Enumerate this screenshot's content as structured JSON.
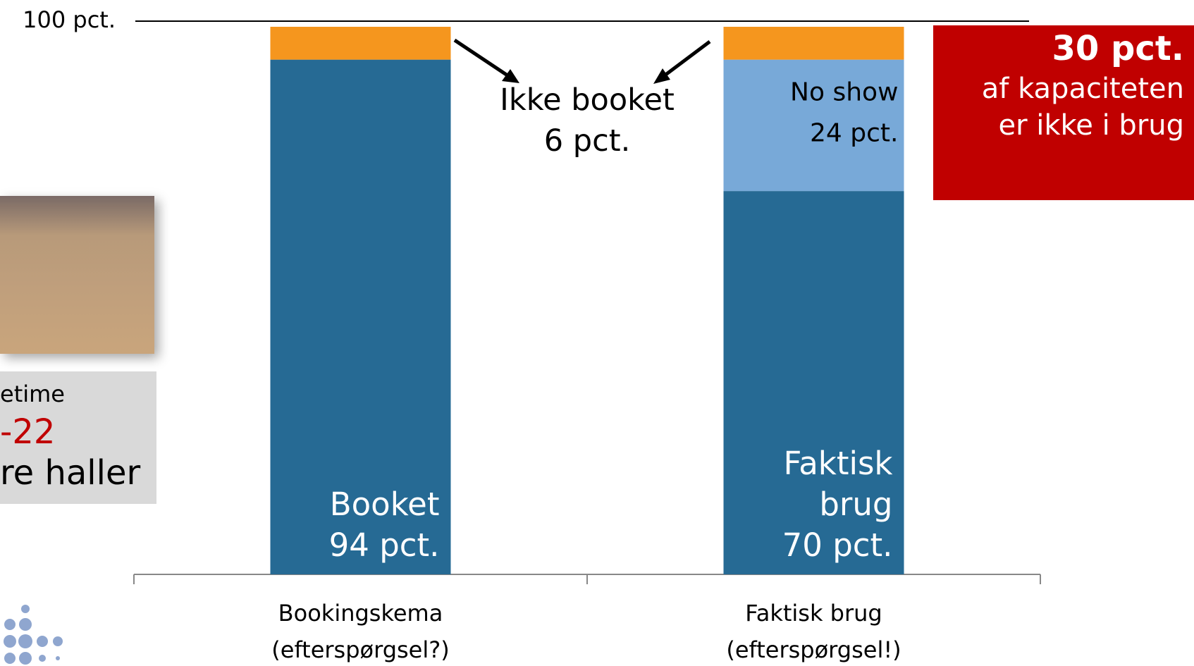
{
  "chart_data": {
    "type": "stacked-bar",
    "categories": [
      "Bookingskema\n(efterspørgsel?)",
      "Faktisk brug\n(efterspørgsel!)"
    ],
    "series": [
      {
        "color": "#266a94",
        "segment_names": [
          "Booket",
          "Faktisk\nbrug"
        ],
        "values": [
          94,
          70
        ],
        "value_labels": [
          "94 pct.",
          "70 pct."
        ]
      },
      {
        "name": "No show",
        "color": "#78a9d8",
        "values": [
          null,
          24
        ],
        "value_labels": [
          null,
          "24 pct."
        ]
      },
      {
        "name": "Ikke booket",
        "color": "#f5961e",
        "values": [
          6,
          6
        ],
        "value_labels": [
          "6 pct.",
          null
        ]
      }
    ],
    "ylim": [
      0,
      100
    ],
    "yticks": [
      {
        "value": 100,
        "label": "100 pct."
      }
    ]
  },
  "callout": {
    "headline": "30 pct.",
    "text": [
      "af kapaciteten",
      "er ikke i brug"
    ]
  },
  "sidebar": {
    "lines": [
      "etime",
      "-22",
      "re haller"
    ]
  }
}
